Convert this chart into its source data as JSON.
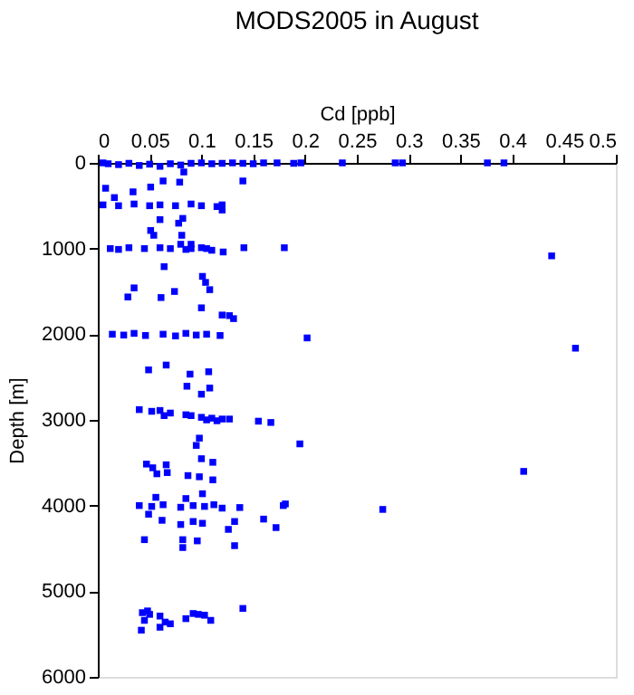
{
  "chart_data": {
    "type": "scatter",
    "title": "MODS2005 in August",
    "xlabel": "Cd [ppb]",
    "ylabel": "Depth [m]",
    "xlim": [
      0,
      0.5
    ],
    "xticks": [
      0,
      0.05,
      0.1,
      0.15,
      0.2,
      0.25,
      0.3,
      0.35,
      0.4,
      0.45,
      0.5
    ],
    "ylim": [
      6000,
      0
    ],
    "yticks": [
      0,
      1000,
      2000,
      3000,
      4000,
      5000,
      6000
    ],
    "grid": false,
    "marker": "square",
    "series": [
      {
        "color": "#0000ff",
        "x": [
          0.005,
          0.01,
          0.02,
          0.03,
          0.04,
          0.05,
          0.06,
          0.07,
          0.08,
          0.09,
          0.1,
          0.11,
          0.12,
          0.13,
          0.14,
          0.15,
          0.16,
          0.173,
          0.189,
          0.196,
          0.236,
          0.287,
          0.294,
          0.376,
          0.392,
          0.0075,
          0.083,
          0.079,
          0.14,
          0.016,
          0.034,
          0.051,
          0.063,
          0.005,
          0.02,
          0.035,
          0.05,
          0.06,
          0.075,
          0.09,
          0.1,
          0.115,
          0.12,
          0.12,
          0.06,
          0.078,
          0.082,
          0.051,
          0.054,
          0.012,
          0.02,
          0.03,
          0.045,
          0.06,
          0.07,
          0.08,
          0.085,
          0.09,
          0.1,
          0.105,
          0.11,
          0.121,
          0.141,
          0.18,
          0.438,
          0.081,
          0.09,
          0.064,
          0.101,
          0.104,
          0.108,
          0.035,
          0.074,
          0.029,
          0.061,
          0.1,
          0.12,
          0.127,
          0.131,
          0.014,
          0.025,
          0.035,
          0.046,
          0.063,
          0.075,
          0.085,
          0.095,
          0.105,
          0.118,
          0.202,
          0.461,
          0.049,
          0.066,
          0.089,
          0.107,
          0.086,
          0.108,
          0.1,
          0.04,
          0.052,
          0.06,
          0.064,
          0.07,
          0.085,
          0.09,
          0.1,
          0.105,
          0.11,
          0.115,
          0.12,
          0.127,
          0.155,
          0.167,
          0.195,
          0.098,
          0.095,
          0.1,
          0.111,
          0.047,
          0.053,
          0.066,
          0.057,
          0.067,
          0.087,
          0.098,
          0.111,
          0.056,
          0.085,
          0.101,
          0.04,
          0.052,
          0.063,
          0.08,
          0.092,
          0.103,
          0.112,
          0.12,
          0.137,
          0.179,
          0.049,
          0.062,
          0.08,
          0.092,
          0.101,
          0.132,
          0.16,
          0.172,
          0.126,
          0.045,
          0.082,
          0.096,
          0.132,
          0.082,
          0.411,
          0.181,
          0.275,
          0.043,
          0.048,
          0.05,
          0.06,
          0.065,
          0.07,
          0.085,
          0.045,
          0.092,
          0.097,
          0.103,
          0.109,
          0.14,
          0.042,
          0.06
        ],
        "values": [
          0,
          10,
          20,
          5,
          30,
          15,
          40,
          10,
          25,
          5,
          0,
          10,
          5,
          0,
          5,
          10,
          0,
          0,
          5,
          0,
          0,
          0,
          0,
          0,
          0,
          296,
          106,
          225,
          211,
          405,
          338,
          282,
          211,
          490,
          500,
          480,
          500,
          490,
          500,
          480,
          500,
          510,
          490,
          550,
          662,
          704,
          648,
          789,
          845,
          1000,
          1010,
          990,
          1000,
          990,
          1000,
          950,
          1010,
          1000,
          990,
          1000,
          1020,
          1040,
          990,
          990,
          1085,
          845,
          950,
          1211,
          1325,
          1395,
          1480,
          1459,
          1501,
          1565,
          1572,
          1692,
          1776,
          1783,
          1818,
          2000,
          2010,
          1990,
          2015,
          2000,
          2020,
          1990,
          2010,
          2000,
          2015,
          2043,
          2163,
          2416,
          2360,
          2466,
          2438,
          2607,
          2628,
          2700,
          2880,
          2900,
          2890,
          2950,
          2920,
          2940,
          2950,
          2970,
          3000,
          2980,
          3010,
          2990,
          2990,
          3015,
          3030,
          3280,
          3213,
          3298,
          3453,
          3495,
          3516,
          3559,
          3524,
          3629,
          3615,
          3650,
          3664,
          3700,
          3904,
          3918,
          3862,
          4000,
          4010,
          3990,
          4020,
          4000,
          4010,
          3990,
          4030,
          4023,
          4000,
          4101,
          4172,
          4221,
          4186,
          4207,
          4186,
          4158,
          4257,
          4278,
          4398,
          4398,
          4412,
          4468,
          4490,
          3601,
          3981,
          4045,
          5250,
          5230,
          5270,
          5290,
          5360,
          5380,
          5320,
          5340,
          5260,
          5270,
          5280,
          5340,
          5201,
          5455,
          5420
        ]
      }
    ]
  }
}
